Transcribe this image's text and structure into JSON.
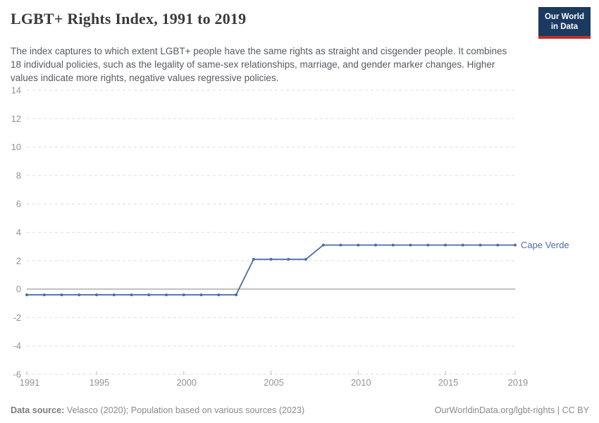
{
  "header": {
    "title": "LGBT+ Rights Index, 1991 to 2019",
    "subtitle": "The index captures to which extent LGBT+ people have the same rights as straight and cisgender people. It combines 18 individual policies, such as the legality of same-sex relationships, marriage, and gender marker changes. Higher values indicate more rights, negative values regressive policies.",
    "logo": {
      "line1": "Our World",
      "line2": "in Data"
    }
  },
  "chart_data": {
    "type": "line",
    "title": "LGBT+ Rights Index, 1991 to 2019",
    "xlabel": "",
    "ylabel": "",
    "xlim": [
      1991,
      2019
    ],
    "ylim": [
      -6,
      14
    ],
    "yticks": [
      -6,
      -4,
      -2,
      0,
      2,
      4,
      6,
      8,
      10,
      12,
      14
    ],
    "xticks": [
      1991,
      1995,
      2000,
      2005,
      2010,
      2015,
      2019
    ],
    "grid": "horizontal-dashed",
    "zero_line": true,
    "legend_position": "end-of-line-label",
    "x": [
      1991,
      1992,
      1993,
      1994,
      1995,
      1996,
      1997,
      1998,
      1999,
      2000,
      2001,
      2002,
      2003,
      2004,
      2005,
      2006,
      2007,
      2008,
      2009,
      2010,
      2011,
      2012,
      2013,
      2014,
      2015,
      2016,
      2017,
      2018,
      2019
    ],
    "series": [
      {
        "name": "Cape Verde",
        "color": "#4c6da6",
        "values": [
          -0.4,
          -0.4,
          -0.4,
          -0.4,
          -0.4,
          -0.4,
          -0.4,
          -0.4,
          -0.4,
          -0.4,
          -0.4,
          -0.4,
          -0.4,
          2.1,
          2.1,
          2.1,
          2.1,
          3.1,
          3.1,
          3.1,
          3.1,
          3.1,
          3.1,
          3.1,
          3.1,
          3.1,
          3.1,
          3.1,
          3.1
        ]
      }
    ]
  },
  "footer": {
    "datasource_label": "Data source:",
    "datasource_text": " Velasco (2020); Population based on various sources (2023)",
    "credit": "OurWorldinData.org/lgbt-rights | CC BY"
  },
  "colors": {
    "line": "#4c6da6",
    "grid": "#dfdfdf",
    "zero_line": "#a6a6a6",
    "tick_text": "#929292",
    "x_tick_mark": "#bdbdbd",
    "logo_bg": "#1a3a60",
    "logo_red": "#c2302a"
  }
}
